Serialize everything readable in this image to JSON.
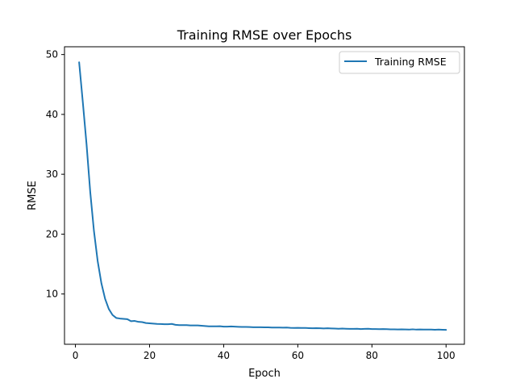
{
  "chart_data": {
    "type": "line",
    "title": "Training RMSE over Epochs",
    "xlabel": "Epoch",
    "ylabel": "RMSE",
    "xlim": [
      -2.95,
      104.95
    ],
    "ylim": [
      1.6,
      51.3
    ],
    "xticks": [
      0,
      20,
      40,
      60,
      80,
      100
    ],
    "yticks": [
      10,
      20,
      30,
      40,
      50
    ],
    "grid": false,
    "legend_position": "upper right",
    "series": [
      {
        "name": "Training RMSE",
        "color": "#1f77b4",
        "x": [
          1,
          2,
          3,
          4,
          5,
          6,
          7,
          8,
          9,
          10,
          11,
          12,
          13,
          14,
          15,
          16,
          17,
          18,
          19,
          20,
          21,
          22,
          23,
          24,
          25,
          26,
          27,
          28,
          29,
          30,
          31,
          32,
          33,
          34,
          35,
          36,
          37,
          38,
          39,
          40,
          41,
          42,
          43,
          44,
          45,
          46,
          47,
          48,
          49,
          50,
          51,
          52,
          53,
          54,
          55,
          56,
          57,
          58,
          59,
          60,
          61,
          62,
          63,
          64,
          65,
          66,
          67,
          68,
          69,
          70,
          71,
          72,
          73,
          74,
          75,
          76,
          77,
          78,
          79,
          80,
          81,
          82,
          83,
          84,
          85,
          86,
          87,
          88,
          89,
          90,
          91,
          92,
          93,
          94,
          95,
          96,
          97,
          98,
          99,
          100
        ],
        "values": [
          48.7,
          42.0,
          35.0,
          27.0,
          20.5,
          15.5,
          11.8,
          9.2,
          7.5,
          6.5,
          6.0,
          5.9,
          5.85,
          5.8,
          5.45,
          5.5,
          5.35,
          5.3,
          5.15,
          5.1,
          5.05,
          5.0,
          4.98,
          4.95,
          4.95,
          5.0,
          4.85,
          4.8,
          4.8,
          4.8,
          4.75,
          4.75,
          4.75,
          4.7,
          4.65,
          4.6,
          4.6,
          4.6,
          4.62,
          4.55,
          4.55,
          4.58,
          4.55,
          4.52,
          4.5,
          4.5,
          4.48,
          4.45,
          4.45,
          4.45,
          4.42,
          4.42,
          4.4,
          4.4,
          4.4,
          4.38,
          4.4,
          4.35,
          4.33,
          4.35,
          4.32,
          4.32,
          4.3,
          4.28,
          4.3,
          4.28,
          4.25,
          4.28,
          4.25,
          4.22,
          4.2,
          4.22,
          4.2,
          4.18,
          4.18,
          4.2,
          4.15,
          4.18,
          4.2,
          4.15,
          4.15,
          4.13,
          4.15,
          4.12,
          4.1,
          4.1,
          4.08,
          4.1,
          4.08,
          4.05,
          4.1,
          4.05,
          4.08,
          4.06,
          4.05,
          4.05,
          4.02,
          4.05,
          4.03,
          4.0
        ]
      }
    ]
  }
}
